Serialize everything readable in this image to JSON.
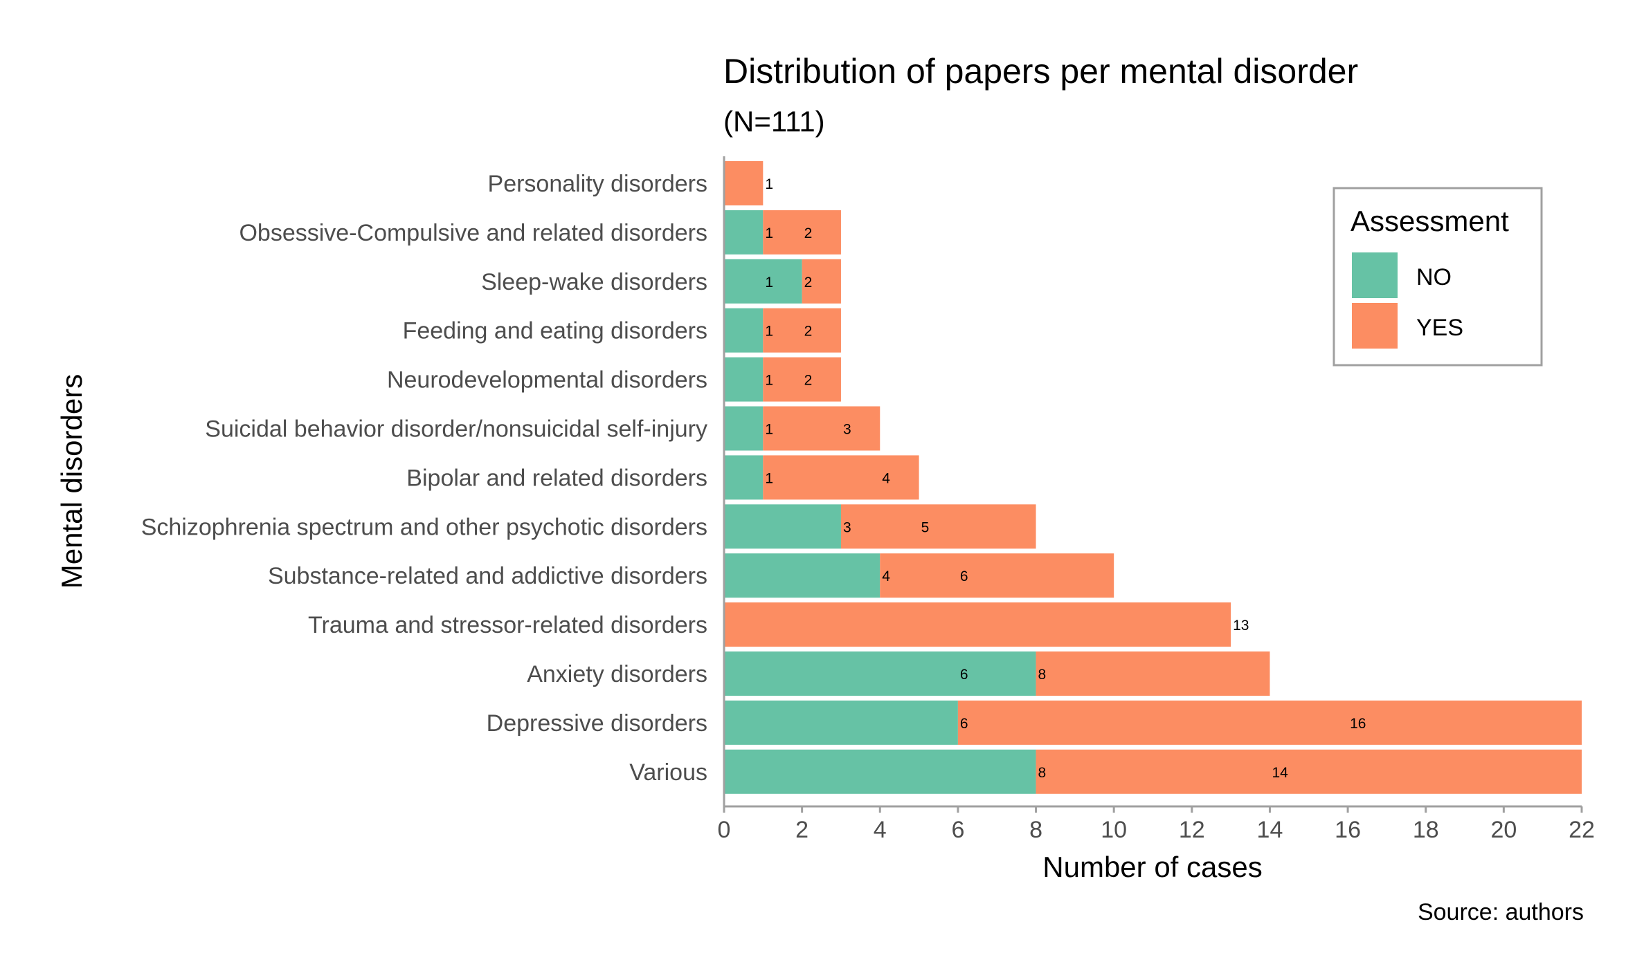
{
  "colors": {
    "no": "#66C2A5",
    "yes": "#FC8D62",
    "text": "#000000",
    "axis_text": "#4D4D4D",
    "axis_line": "#A0A0A0",
    "legend_border": "#A0A0A0"
  },
  "chart_data": {
    "type": "bar",
    "orientation": "horizontal",
    "stacked": true,
    "title": "Distribution of papers per mental disorder",
    "subtitle": "(N=111)",
    "caption": "Source: authors",
    "xlabel": "Number of cases",
    "ylabel": "Mental disorders",
    "xlim": [
      0,
      22
    ],
    "xticks": [
      0,
      2,
      4,
      6,
      8,
      10,
      12,
      14,
      16,
      18,
      20,
      22
    ],
    "grid": false,
    "legend": {
      "title": "Assessment",
      "position": "top-right",
      "entries": [
        "NO",
        "YES"
      ]
    },
    "categories": [
      "Personality disorders",
      "Obsessive-Compulsive and related disorders",
      "Sleep-wake disorders",
      "Feeding and eating disorders",
      "Neurodevelopmental disorders",
      "Suicidal behavior disorder/nonsuicidal self-injury",
      "Bipolar and related disorders",
      "Schizophrenia spectrum and other psychotic disorders",
      "Substance-related and addictive disorders",
      "Trauma and stressor-related disorders",
      "Anxiety disorders",
      "Depressive disorders",
      "Various"
    ],
    "series": [
      {
        "name": "NO",
        "values": [
          0,
          1,
          2,
          1,
          1,
          1,
          1,
          3,
          4,
          0,
          8,
          6,
          8
        ]
      },
      {
        "name": "YES",
        "values": [
          1,
          2,
          1,
          2,
          2,
          3,
          4,
          5,
          6,
          13,
          6,
          16,
          14
        ]
      }
    ],
    "data_labels": [
      {
        "category": "Personality disorders",
        "labels": [
          {
            "text": "1",
            "at": 1
          }
        ]
      },
      {
        "category": "Obsessive-Compulsive and related disorders",
        "labels": [
          {
            "text": "1",
            "at": 1
          },
          {
            "text": "2",
            "at": 2
          }
        ]
      },
      {
        "category": "Sleep-wake disorders",
        "labels": [
          {
            "text": "1",
            "at": 1
          },
          {
            "text": "2",
            "at": 2
          }
        ]
      },
      {
        "category": "Feeding and eating disorders",
        "labels": [
          {
            "text": "1",
            "at": 1
          },
          {
            "text": "2",
            "at": 2
          }
        ]
      },
      {
        "category": "Neurodevelopmental disorders",
        "labels": [
          {
            "text": "1",
            "at": 1
          },
          {
            "text": "2",
            "at": 2
          }
        ]
      },
      {
        "category": "Suicidal behavior disorder/nonsuicidal self-injury",
        "labels": [
          {
            "text": "1",
            "at": 1
          },
          {
            "text": "3",
            "at": 3
          }
        ]
      },
      {
        "category": "Bipolar and related disorders",
        "labels": [
          {
            "text": "1",
            "at": 1
          },
          {
            "text": "4",
            "at": 4
          }
        ]
      },
      {
        "category": "Schizophrenia spectrum and other psychotic disorders",
        "labels": [
          {
            "text": "3",
            "at": 3
          },
          {
            "text": "5",
            "at": 5
          }
        ]
      },
      {
        "category": "Substance-related and addictive disorders",
        "labels": [
          {
            "text": "4",
            "at": 4
          },
          {
            "text": "6",
            "at": 6
          }
        ]
      },
      {
        "category": "Trauma and stressor-related disorders",
        "labels": [
          {
            "text": "13",
            "at": 13
          }
        ]
      },
      {
        "category": "Anxiety disorders",
        "labels": [
          {
            "text": "6",
            "at": 6
          },
          {
            "text": "8",
            "at": 8
          }
        ]
      },
      {
        "category": "Depressive disorders",
        "labels": [
          {
            "text": "6",
            "at": 6
          },
          {
            "text": "16",
            "at": 16
          }
        ]
      },
      {
        "category": "Various",
        "labels": [
          {
            "text": "8",
            "at": 8
          },
          {
            "text": "14",
            "at": 14
          }
        ]
      }
    ]
  }
}
